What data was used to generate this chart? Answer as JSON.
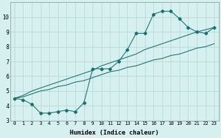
{
  "xlabel": "Humidex (Indice chaleur)",
  "background_color": "#d6f0f0",
  "grid_color": "#b8d8d8",
  "line_color": "#1a7070",
  "xlim": [
    -0.5,
    23.5
  ],
  "ylim": [
    3,
    11
  ],
  "yticks": [
    3,
    4,
    5,
    6,
    7,
    8,
    9,
    10
  ],
  "xticks": [
    0,
    1,
    2,
    3,
    4,
    5,
    6,
    7,
    8,
    9,
    10,
    11,
    12,
    13,
    14,
    15,
    16,
    17,
    18,
    19,
    20,
    21,
    22,
    23
  ],
  "line1_x": [
    0,
    1,
    2,
    3,
    4,
    5,
    6,
    7,
    8,
    9,
    10,
    11,
    12,
    13,
    14,
    15,
    16,
    17,
    18,
    19,
    20,
    21,
    22,
    23
  ],
  "line1_y": [
    4.5,
    4.4,
    4.1,
    3.5,
    3.5,
    3.6,
    3.7,
    3.6,
    4.2,
    6.5,
    6.5,
    6.5,
    7.0,
    7.8,
    8.9,
    8.9,
    10.2,
    10.4,
    10.4,
    9.9,
    9.3,
    9.0,
    8.9,
    9.3
  ],
  "line2_x": [
    0,
    1,
    2,
    3,
    4,
    5,
    6,
    7,
    8,
    9,
    10,
    11,
    12,
    13,
    14,
    15,
    16,
    17,
    18,
    19,
    20,
    21,
    22,
    23
  ],
  "line2_y": [
    4.5,
    4.7,
    5.0,
    5.2,
    5.4,
    5.6,
    5.8,
    6.0,
    6.2,
    6.4,
    6.7,
    6.9,
    7.1,
    7.3,
    7.5,
    7.8,
    8.0,
    8.2,
    8.4,
    8.6,
    8.8,
    9.0,
    9.15,
    9.3
  ],
  "line3_x": [
    0,
    1,
    2,
    3,
    4,
    5,
    6,
    7,
    8,
    9,
    10,
    11,
    12,
    13,
    14,
    15,
    16,
    17,
    18,
    19,
    20,
    21,
    22,
    23
  ],
  "line3_y": [
    4.5,
    4.6,
    4.8,
    5.0,
    5.1,
    5.3,
    5.4,
    5.6,
    5.7,
    5.9,
    6.1,
    6.3,
    6.4,
    6.6,
    6.7,
    6.9,
    7.1,
    7.2,
    7.4,
    7.5,
    7.7,
    7.9,
    8.0,
    8.2
  ]
}
